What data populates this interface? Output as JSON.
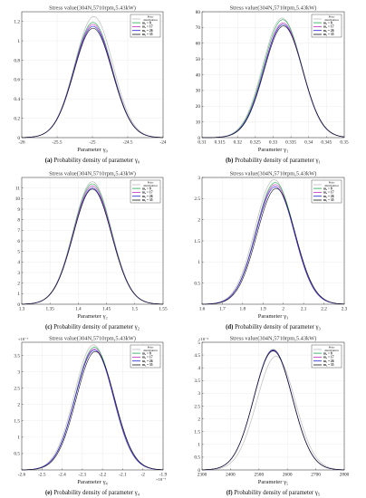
{
  "legend_labels": [
    "Prior distribution",
    "m₀ = 8",
    "m₀ = 17",
    "m₀ = 26",
    "m₀ = 35"
  ],
  "series_colors": [
    "#bdbdbd",
    "#1faa4c",
    "#c42bc4",
    "#1b1bd6",
    "#111111"
  ],
  "chart_data": [
    {
      "type": "line",
      "title": "Stress value(304N,5710rpm,5.43kW)",
      "xlabel": "Parameter γ₀",
      "caption_tag": "(a)",
      "caption_text": "Probability density of parameter  γ₀",
      "xlim": [
        -26,
        -24
      ],
      "ylim": [
        0,
        1.3
      ],
      "xticks": [
        "-26",
        "-25.5",
        "-25",
        "-24.5",
        "-24"
      ],
      "yticks": [
        "0",
        "0.2",
        "0.4",
        "0.6",
        "0.8",
        "1",
        "1.2"
      ],
      "y_exponent": "",
      "series": [
        {
          "mean": -24.98,
          "peak": 1.25
        },
        {
          "mean": -24.99,
          "peak": 1.19
        },
        {
          "mean": -24.99,
          "peak": 1.17
        },
        {
          "mean": -24.99,
          "peak": 1.15
        },
        {
          "mean": -24.99,
          "peak": 1.13
        }
      ]
    },
    {
      "type": "line",
      "title": "Stress value(304N,5710rpm,5.43kW)",
      "xlabel": "Parameter γ₁",
      "caption_tag": "(b)",
      "caption_text": "Probability density of parameter  γ₁",
      "xlim": [
        0.31,
        0.35
      ],
      "ylim": [
        0,
        80
      ],
      "xticks": [
        "0.31",
        "0.315",
        "0.32",
        "0.325",
        "0.33",
        "0.335",
        "0.34",
        "0.345",
        "0.35"
      ],
      "yticks": [
        "0",
        "10",
        "20",
        "30",
        "40",
        "50",
        "60",
        "70",
        "80"
      ],
      "y_exponent": "",
      "series": [
        {
          "mean": 0.3325,
          "peak": 76
        },
        {
          "mean": 0.3327,
          "peak": 75
        },
        {
          "mean": 0.3328,
          "peak": 73
        },
        {
          "mean": 0.3328,
          "peak": 72
        },
        {
          "mean": 0.3329,
          "peak": 71
        }
      ]
    },
    {
      "type": "line",
      "title": "Stress value(304N,5710rpm,5.43kW)",
      "xlabel": "Parameter γ₂",
      "caption_tag": "(c)",
      "caption_text": "Probability density of parameter  γ₂",
      "xlim": [
        1.3,
        1.55
      ],
      "ylim": [
        0,
        12
      ],
      "xticks": [
        "1.3",
        "1.35",
        "1.4",
        "1.45",
        "1.5",
        "1.55"
      ],
      "yticks": [
        "0",
        "1",
        "2",
        "3",
        "4",
        "5",
        "6",
        "7",
        "8",
        "9",
        "10",
        "11"
      ],
      "y_exponent": "",
      "series": [
        {
          "mean": 1.425,
          "peak": 11.6
        },
        {
          "mean": 1.425,
          "peak": 11.4
        },
        {
          "mean": 1.425,
          "peak": 11.2
        },
        {
          "mean": 1.425,
          "peak": 11.0
        },
        {
          "mean": 1.425,
          "peak": 10.9
        }
      ]
    },
    {
      "type": "line",
      "title": "Stress value(304N,5710rpm,5.43kW)",
      "xlabel": "Parameter γ₃",
      "caption_tag": "(d)",
      "caption_text": "Probability density of parameter  γ₃",
      "xlim": [
        1.6,
        2.3
      ],
      "ylim": [
        0,
        3
      ],
      "xticks": [
        "1.6",
        "1.7",
        "1.8",
        "1.9",
        "2",
        "2.1",
        "2.2",
        "2.3"
      ],
      "yticks": [
        "0.5",
        "1",
        "1.5",
        "2",
        "2.5",
        "3"
      ],
      "y_exponent": "",
      "series": [
        {
          "mean": 1.955,
          "peak": 2.95
        },
        {
          "mean": 1.96,
          "peak": 2.88
        },
        {
          "mean": 1.96,
          "peak": 2.83
        },
        {
          "mean": 1.96,
          "peak": 2.78
        },
        {
          "mean": 1.965,
          "peak": 2.74
        }
      ]
    },
    {
      "type": "line",
      "title": "Stress value(304N,5710rpm,5.43kW)",
      "xlabel": "Parameter γ₄",
      "caption_tag": "(e)",
      "caption_text": "Probability density of parameter  γ₄",
      "xlim": [
        -2.6,
        -1.9
      ],
      "ylim": [
        0,
        3.9
      ],
      "xticks": [
        "-2.6",
        "-2.5",
        "-2.4",
        "-2.3",
        "-2.2",
        "-2.1",
        "-2",
        "-1.9"
      ],
      "yticks": [
        "0.5",
        "1",
        "1.5",
        "2",
        "2.5",
        "3",
        "3.5"
      ],
      "y_exponent": "×10⁻⁷",
      "x_exponent": "×10⁻⁷",
      "series": [
        {
          "mean": -2.245,
          "peak": 3.82
        },
        {
          "mean": -2.24,
          "peak": 3.75
        },
        {
          "mean": -2.24,
          "peak": 3.7
        },
        {
          "mean": -2.24,
          "peak": 3.66
        },
        {
          "mean": -2.235,
          "peak": 3.62
        }
      ]
    },
    {
      "type": "line",
      "title": "Stress value(304N,5710rpm,5.43kW)",
      "xlabel": "Parameter γ₅",
      "caption_tag": "(f)",
      "caption_text": "Probability density of parameter  γ₅",
      "xlim": [
        2300,
        2800
      ],
      "ylim": [
        0,
        5
      ],
      "xticks": [
        "2300",
        "2400",
        "2500",
        "2600",
        "2700",
        "2800"
      ],
      "yticks": [
        "0",
        "0.5",
        "1",
        "1.5",
        "2",
        "2.5",
        "3",
        "3.5",
        "4",
        "4.5",
        "5"
      ],
      "y_exponent": "×10⁻³",
      "series": [
        {
          "mean": 2560,
          "peak": 4.45
        },
        {
          "mean": 2550,
          "peak": 4.72
        },
        {
          "mean": 2550,
          "peak": 4.7
        },
        {
          "mean": 2550,
          "peak": 4.68
        },
        {
          "mean": 2550,
          "peak": 4.66
        }
      ]
    }
  ]
}
